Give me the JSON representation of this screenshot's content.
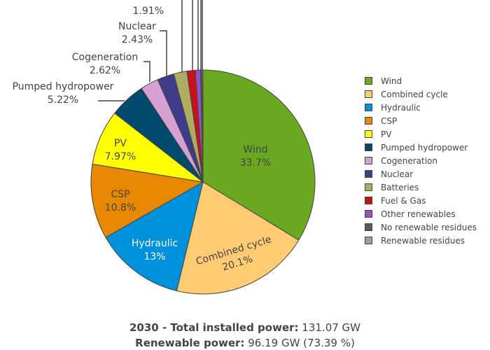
{
  "chart_data": {
    "type": "pie",
    "slices": [
      {
        "label": "Wind",
        "percent": 33.7,
        "percent_label": "33.7%",
        "color": "#6aa821",
        "label_color": "#444444",
        "label_inside": true
      },
      {
        "label": "Combined cycle",
        "percent": 20.1,
        "percent_label": "20.1%",
        "color": "#ffcc73",
        "label_color": "#444444",
        "label_inside": true
      },
      {
        "label": "Hydraulic",
        "percent": 13.0,
        "percent_label": "13%",
        "color": "#0091dd",
        "label_color": "#ffffff",
        "label_inside": true
      },
      {
        "label": "CSP",
        "percent": 10.8,
        "percent_label": "10.8%",
        "color": "#e88700",
        "label_color": "#444444",
        "label_inside": true
      },
      {
        "label": "PV",
        "percent": 7.97,
        "percent_label": "7.97%",
        "color": "#ffff00",
        "label_color": "#444444",
        "label_inside": true
      },
      {
        "label": "Pumped hydropower",
        "percent": 5.22,
        "percent_label": "5.22%",
        "color": "#004a6e",
        "label_color": "#444444",
        "label_inside": false
      },
      {
        "label": "Cogeneration",
        "percent": 2.62,
        "percent_label": "2.62%",
        "color": "#d6a1d2",
        "label_color": "#444444",
        "label_inside": false
      },
      {
        "label": "Nuclear",
        "percent": 2.43,
        "percent_label": "2.43%",
        "color": "#3f3c8c",
        "label_color": "#444444",
        "label_inside": false
      },
      {
        "label": "Batteries",
        "percent": 1.91,
        "percent_label": "1.91%",
        "color": "#aeac63",
        "label_color": "#444444",
        "label_inside": false,
        "name_visible": false
      },
      {
        "label": "Fuel & Gas",
        "percent": 1.2,
        "percent_label": "",
        "color": "#c9101b",
        "label_color": "#444444",
        "label_inside": false
      },
      {
        "label": "Other renewables",
        "percent": 0.75,
        "percent_label": "",
        "color": "#9651c8",
        "label_color": "#444444",
        "label_inside": false
      },
      {
        "label": "No renewable residues",
        "percent": 0.2,
        "percent_label": "",
        "color": "#595959",
        "label_color": "#444444",
        "label_inside": false
      },
      {
        "label": "Renewable residues",
        "percent": 0.15,
        "percent_label": "",
        "color": "#9f9f9f",
        "label_color": "#444444",
        "label_inside": false
      }
    ],
    "legend_position": "right"
  },
  "legend": {
    "items": [
      {
        "label": "Wind",
        "color": "#6aa821"
      },
      {
        "label": "Combined cycle",
        "color": "#ffcc73"
      },
      {
        "label": "Hydraulic",
        "color": "#0091dd"
      },
      {
        "label": "CSP",
        "color": "#e88700"
      },
      {
        "label": "PV",
        "color": "#ffff00"
      },
      {
        "label": "Pumped hydropower",
        "color": "#004a6e"
      },
      {
        "label": "Cogeneration",
        "color": "#d6a1d2"
      },
      {
        "label": "Nuclear",
        "color": "#3f3c8c"
      },
      {
        "label": "Batteries",
        "color": "#aeac63"
      },
      {
        "label": "Fuel & Gas",
        "color": "#c9101b"
      },
      {
        "label": "Other renewables",
        "color": "#9651c8"
      },
      {
        "label": "No renewable residues",
        "color": "#595959"
      },
      {
        "label": "Renewable residues",
        "color": "#9f9f9f"
      }
    ]
  },
  "footer": {
    "line1_bold": "2030 - Total installed power:",
    "line1_value": "131.07 GW",
    "line2_bold": "Renewable power:",
    "line2_value": "96.19 GW (73.39 %)"
  }
}
